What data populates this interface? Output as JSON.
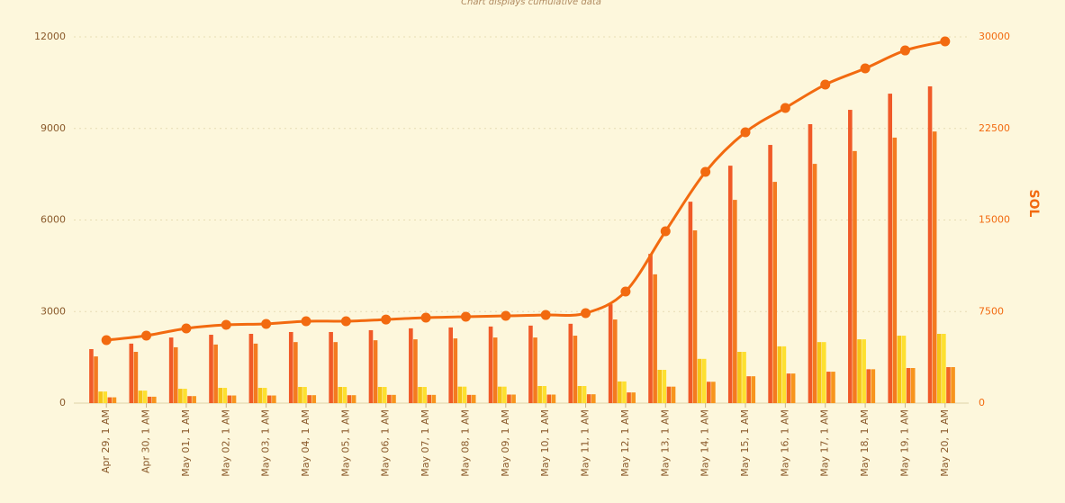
{
  "chart_data": {
    "type": "bar",
    "subtitle": "Chart displays cumulative data",
    "y2_label": "SOL",
    "categories": [
      "Apr 29, 1 AM",
      "Apr 30, 1 AM",
      "May 01, 1 AM",
      "May 02, 1 AM",
      "May 03, 1 AM",
      "May 04, 1 AM",
      "May 05, 1 AM",
      "May 06, 1 AM",
      "May 07, 1 AM",
      "May 08, 1 AM",
      "May 09, 1 AM",
      "May 10, 1 AM",
      "May 11, 1 AM",
      "May 12, 1 AM",
      "May 13, 1 AM",
      "May 14, 1 AM",
      "May 15, 1 AM",
      "May 16, 1 AM",
      "May 17, 1 AM",
      "May 18, 1 AM",
      "May 19, 1 AM",
      "May 20, 1 AM"
    ],
    "series": [
      {
        "color": "#f05a28",
        "values": [
          1770,
          1950,
          2150,
          2240,
          2270,
          2330,
          2330,
          2390,
          2450,
          2480,
          2510,
          2540,
          2600,
          3240,
          4890,
          6600,
          7780,
          8460,
          9140,
          9610,
          10140,
          10380
        ]
      },
      {
        "color": "#f47a20",
        "values": [
          1530,
          1680,
          1830,
          1920,
          1950,
          2000,
          2000,
          2060,
          2090,
          2120,
          2150,
          2150,
          2210,
          2740,
          4220,
          5660,
          6660,
          7250,
          7840,
          8260,
          8700,
          8900
        ]
      },
      {
        "color": "#f5c518",
        "values": [
          380,
          410,
          470,
          500,
          500,
          530,
          530,
          530,
          530,
          540,
          540,
          560,
          560,
          710,
          1090,
          1450,
          1680,
          1860,
          2000,
          2090,
          2210,
          2270
        ]
      },
      {
        "color": "#fde030",
        "values": [
          380,
          410,
          470,
          500,
          500,
          530,
          530,
          530,
          530,
          540,
          540,
          560,
          560,
          710,
          1090,
          1450,
          1680,
          1860,
          2000,
          2090,
          2210,
          2270
        ]
      },
      {
        "color": "#f26522",
        "values": [
          190,
          210,
          230,
          250,
          250,
          260,
          260,
          270,
          270,
          270,
          280,
          280,
          290,
          350,
          540,
          700,
          880,
          970,
          1030,
          1110,
          1150,
          1180
        ]
      },
      {
        "color": "#f7941d",
        "values": [
          190,
          210,
          230,
          250,
          250,
          260,
          260,
          270,
          270,
          270,
          280,
          280,
          290,
          350,
          540,
          700,
          880,
          970,
          1030,
          1110,
          1150,
          1180
        ]
      },
      {
        "type": "line",
        "axis": "y2",
        "color": "#f26a10",
        "values": [
          5160,
          5530,
          6120,
          6410,
          6490,
          6710,
          6710,
          6850,
          7000,
          7080,
          7150,
          7220,
          7370,
          9140,
          14080,
          18940,
          22190,
          24180,
          26090,
          27420,
          28890,
          29630
        ]
      }
    ],
    "ylim": [
      0,
      12000
    ],
    "yticks": [
      0,
      3000,
      6000,
      9000,
      12000
    ],
    "y2lim": [
      0,
      30000
    ],
    "y2ticks": [
      0,
      7500,
      15000,
      22500,
      30000
    ],
    "grid": true
  }
}
